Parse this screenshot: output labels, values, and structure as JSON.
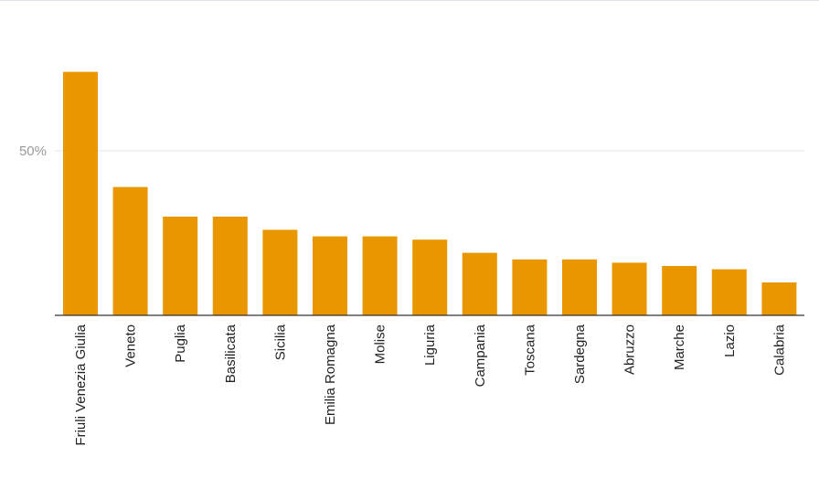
{
  "chart_data": {
    "type": "bar",
    "categories": [
      "Friuli Venezia Giulia",
      "Veneto",
      "Puglia",
      "Basilicata",
      "Sicilia",
      "Emilia Romagna",
      "Molise",
      "Liguria",
      "Campania",
      "Toscana",
      "Sardegna",
      "Abruzzo",
      "Marche",
      "Lazio",
      "Calabria"
    ],
    "values": [
      74,
      39,
      30,
      30,
      26,
      24,
      24,
      23,
      19,
      17,
      17,
      16,
      15,
      14,
      10
    ],
    "ylim": [
      0,
      85
    ],
    "yticks": [
      50
    ],
    "ytick_labels": [
      "50%"
    ],
    "grid": true,
    "bar_color": "#e89700"
  }
}
